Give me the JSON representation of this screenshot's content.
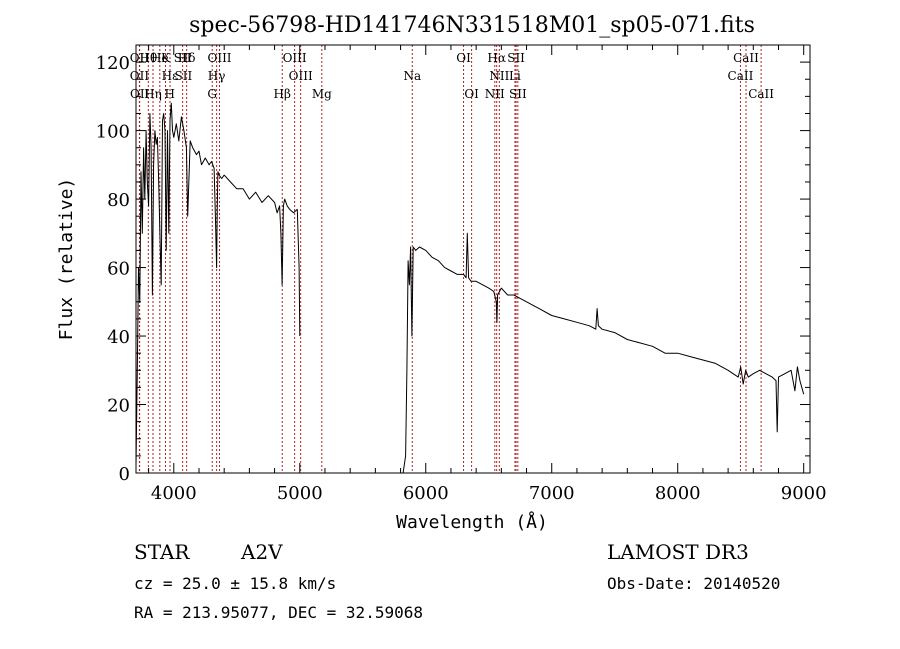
{
  "chart_data": {
    "type": "line",
    "title": "spec-56798-HD141746N331518M01_sp05-071.fits",
    "xlabel": "Wavelength (Å)",
    "ylabel": "Flux (relative)",
    "xlim": [
      3700,
      9050
    ],
    "ylim": [
      0,
      125
    ],
    "xticks": [
      4000,
      5000,
      6000,
      7000,
      8000,
      9000
    ],
    "yticks": [
      0,
      20,
      40,
      60,
      80,
      100,
      120
    ],
    "series": [
      {
        "name": "flux",
        "segments": [
          {
            "x": [
              3700,
              3710,
              3720,
              3730,
              3740,
              3750,
              3760,
              3770,
              3780,
              3790,
              3800,
              3810,
              3820,
              3830,
              3840,
              3850,
              3860,
              3870,
              3880,
              3890,
              3900,
              3910,
              3920,
              3930,
              3940,
              3950,
              3960,
              3970,
              3980,
              3990,
              4000,
              4020,
              4040,
              4060,
              4080,
              4100,
              4110,
              4130,
              4150,
              4180,
              4200,
              4220,
              4250,
              4280,
              4300,
              4320,
              4330,
              4340,
              4345,
              4350,
              4360,
              4380,
              4400,
              4450,
              4500,
              4550,
              4600,
              4650,
              4700,
              4750,
              4800,
              4820,
              4840,
              4850,
              4860,
              4870,
              4880,
              4900,
              4920,
              4950,
              4980,
              4995,
              5000
            ],
            "y": [
              2,
              30,
              60,
              50,
              88,
              70,
              95,
              80,
              100,
              85,
              78,
              105,
              95,
              52,
              90,
              100,
              96,
              98,
              85,
              70,
              55,
              103,
              105,
              100,
              65,
              100,
              70,
              103,
              108,
              100,
              98,
              102,
              97,
              104,
              100,
              95,
              75,
              97,
              95,
              93,
              94,
              90,
              92,
              90,
              91,
              89,
              75,
              60,
              78,
              88,
              87,
              86,
              87,
              85,
              83,
              83,
              80,
              82,
              79,
              81,
              79,
              76,
              78,
              70,
              55,
              78,
              80,
              78,
              77,
              76,
              77,
              60,
              40
            ]
          },
          {
            "x": [
              5820,
              5840,
              5850,
              5860,
              5870,
              5880,
              5890,
              5900,
              5920,
              5950,
              6000,
              6050,
              6100,
              6150,
              6200,
              6250,
              6300,
              6320,
              6330,
              6340,
              6360,
              6400,
              6450,
              6500,
              6540,
              6560,
              6565,
              6570,
              6600,
              6650,
              6700,
              6750,
              6800,
              6850,
              6900,
              7000,
              7100,
              7200,
              7300,
              7350,
              7360,
              7370,
              7400,
              7500,
              7600,
              7700,
              7800,
              7900,
              8000,
              8100,
              8200,
              8300,
              8400,
              8480,
              8500,
              8520,
              8540,
              8560,
              8600,
              8650,
              8700,
              8750,
              8780,
              8790,
              8800,
              8850,
              8900,
              8930,
              8950,
              8970,
              9000
            ],
            "y": [
              0,
              5,
              30,
              62,
              55,
              66,
              40,
              66,
              65,
              66,
              65,
              63,
              62,
              60,
              59,
              58,
              58,
              57,
              70,
              57,
              56,
              56,
              55,
              54,
              53,
              50,
              44,
              52,
              54,
              52,
              52,
              51,
              50,
              49,
              48,
              46,
              45,
              44,
              43,
              42,
              48,
              43,
              42,
              41,
              39,
              38,
              37,
              35,
              35,
              34,
              33,
              32,
              30,
              28,
              31,
              26,
              30,
              28,
              29,
              30,
              29,
              28,
              27,
              12,
              28,
              29,
              30,
              24,
              31,
              27,
              23
            ]
          }
        ]
      }
    ],
    "lines_top": [
      {
        "label": "Hθ",
        "x": 3798
      },
      {
        "label": "OII",
        "x": 3727
      },
      {
        "label": "He",
        "x": 3889
      },
      {
        "label": "K",
        "x": 3934
      },
      {
        "label": "SII",
        "x": 4070
      },
      {
        "label": "Hδ",
        "x": 4102
      },
      {
        "label": "OIII",
        "x": 4363
      },
      {
        "label": "OIII",
        "x": 4959
      },
      {
        "label": "OI",
        "x": 6300
      },
      {
        "label": "Hα",
        "x": 6563
      },
      {
        "label": "SII",
        "x": 6717
      },
      {
        "label": "CaII",
        "x": 8542
      }
    ],
    "lines_mid": [
      {
        "label": "OII",
        "x": 3727
      },
      {
        "label": "Hε",
        "x": 3970
      },
      {
        "label": "SII",
        "x": 4076
      },
      {
        "label": "Hγ",
        "x": 4340
      },
      {
        "label": "OIII",
        "x": 5007
      },
      {
        "label": "Na",
        "x": 5893
      },
      {
        "label": "NII",
        "x": 6584
      },
      {
        "label": "Li",
        "x": 6708
      },
      {
        "label": "CaII",
        "x": 8498
      }
    ],
    "lines_low": [
      {
        "label": "OII",
        "x": 3729
      },
      {
        "label": "Hη",
        "x": 3835
      },
      {
        "label": "H",
        "x": 3968
      },
      {
        "label": "G",
        "x": 4305
      },
      {
        "label": "Hβ",
        "x": 4861
      },
      {
        "label": "Mg",
        "x": 5175
      },
      {
        "label": "OI",
        "x": 6364
      },
      {
        "label": "NII",
        "x": 6548
      },
      {
        "label": "SII",
        "x": 6731
      },
      {
        "label": "CaII",
        "x": 8662
      }
    ]
  },
  "info": {
    "object_type": "STAR",
    "subclass": "A2V",
    "cz": "cz = 25.0 ± 15.8 km/s",
    "coords": "RA = 213.95077, DEC =  32.59068",
    "survey": "LAMOST DR3",
    "obs_date": "Obs-Date: 20140520"
  },
  "colors": {
    "axis": "#000000",
    "spectrum": "#000000",
    "line_marker": "#b22222"
  }
}
